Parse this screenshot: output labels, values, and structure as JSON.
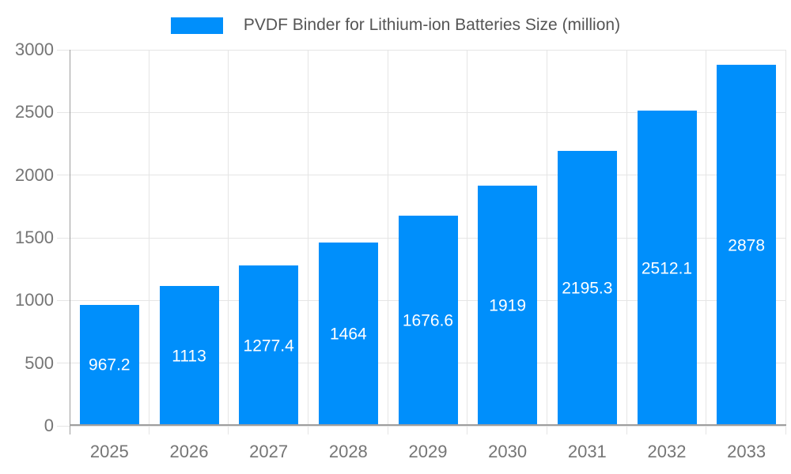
{
  "legend": {
    "label": "PVDF Binder for Lithium-ion Batteries Size (million)"
  },
  "chart_data": {
    "type": "bar",
    "title": "PVDF Binder for Lithium-ion Batteries Size (million)",
    "categories": [
      "2025",
      "2026",
      "2027",
      "2028",
      "2029",
      "2030",
      "2031",
      "2032",
      "2033"
    ],
    "series": [
      {
        "name": "PVDF Binder for Lithium-ion Batteries Size (million)",
        "values": [
          967.2,
          1113,
          1277.4,
          1464,
          1676.6,
          1919,
          2195.3,
          2512.1,
          2878
        ]
      }
    ],
    "values": [
      967.2,
      1113,
      1277.4,
      1464,
      1676.6,
      1919,
      2195.3,
      2512.1,
      2878
    ],
    "value_labels": [
      "967.2",
      "1113",
      "1277.4",
      "1464",
      "1676.6",
      "1919",
      "2195.3",
      "2512.1",
      "2878"
    ],
    "xlabel": "",
    "ylabel": "",
    "ylim": [
      0,
      3000
    ],
    "y_ticks": [
      0,
      500,
      1000,
      1500,
      2000,
      2500,
      3000
    ],
    "grid": true,
    "legend_position": "top",
    "value_labels_position": "center-inside"
  },
  "colors": {
    "bar": "#008FFB",
    "value_label": "#FFFFFF",
    "gridline": "#E5E5E5",
    "axis_line": "#9E9E9E",
    "tick_label": "#757575",
    "legend_text": "#555555",
    "background": "#FFFFFF"
  }
}
